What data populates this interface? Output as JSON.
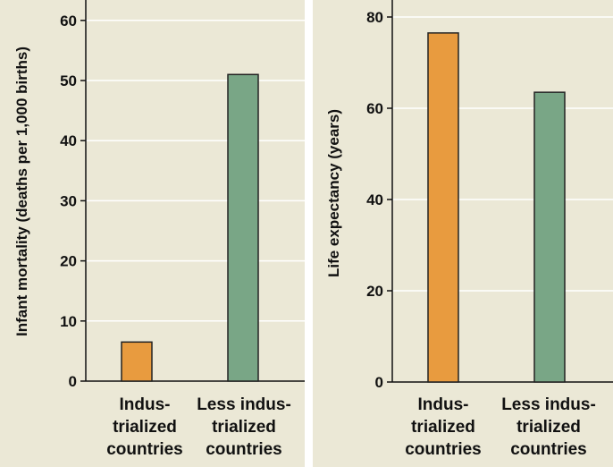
{
  "colors": {
    "panel_bg": "#ebe8d6",
    "grid": "#ffffff",
    "industrialized": "#e89b3f",
    "less_industrialized": "#79a686",
    "bar_stroke": "#222222"
  },
  "chart_data": [
    {
      "type": "bar",
      "title": "",
      "xlabel": "",
      "ylabel": "Infant mortality (deaths per 1,000 births)",
      "categories": [
        [
          "Indus-",
          "trialized",
          "countries"
        ],
        [
          "Less indus-",
          "trialized",
          "countries"
        ]
      ],
      "values": [
        6.5,
        51
      ],
      "ylim": [
        0,
        60
      ],
      "yticks": [
        "0",
        "10",
        "20",
        "30",
        "40",
        "50",
        "60"
      ],
      "grid": true
    },
    {
      "type": "bar",
      "title": "",
      "xlabel": "",
      "ylabel": "Life expectancy (years)",
      "categories": [
        [
          "Indus-",
          "trialized",
          "countries"
        ],
        [
          "Less indus-",
          "trialized",
          "countries"
        ]
      ],
      "values": [
        76.5,
        63.5
      ],
      "ylim": [
        0,
        80
      ],
      "yticks": [
        "0",
        "20",
        "40",
        "60",
        "80"
      ],
      "grid": true
    }
  ]
}
